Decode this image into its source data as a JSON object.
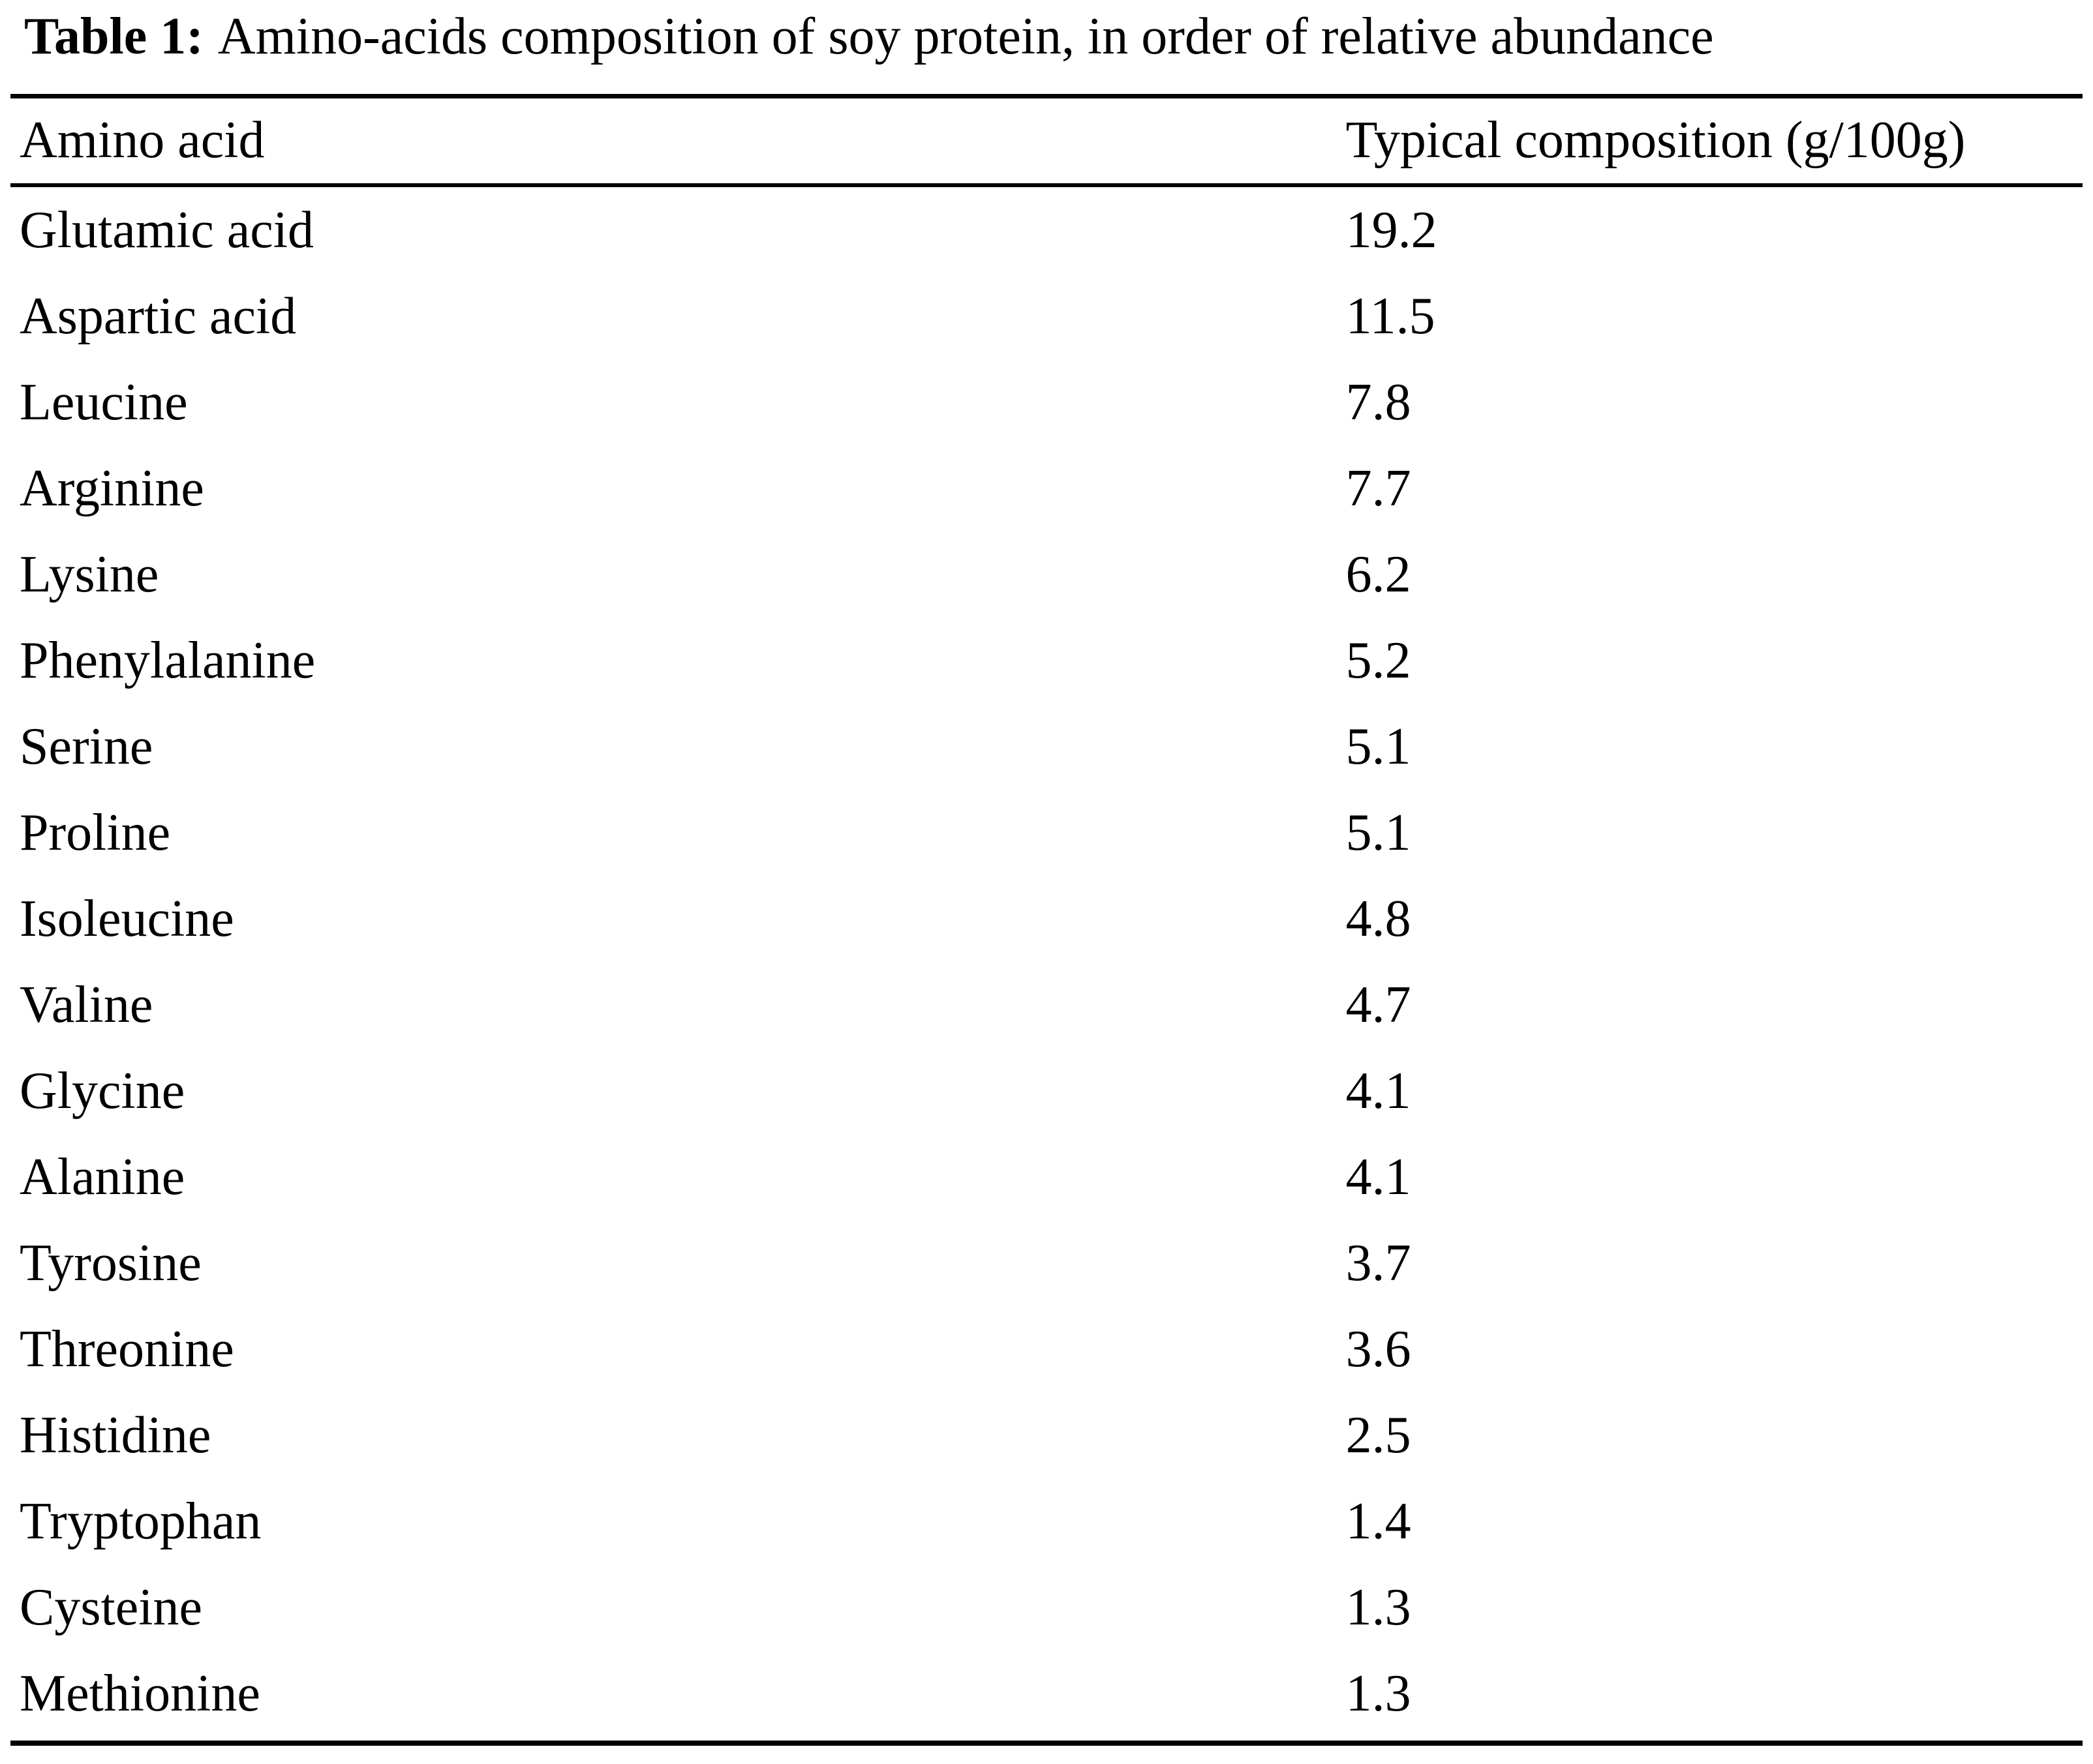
{
  "table": {
    "caption": {
      "label": "Table 1:",
      "text": "Amino-acids composition of soy protein, in order of relative abundance"
    },
    "columns": [
      "Amino acid",
      "Typical composition (g/100g)"
    ],
    "rows": [
      {
        "amino_acid": "Glutamic acid",
        "composition": "19.2"
      },
      {
        "amino_acid": "Aspartic acid",
        "composition": "11.5"
      },
      {
        "amino_acid": "Leucine",
        "composition": "7.8"
      },
      {
        "amino_acid": "Arginine",
        "composition": "7.7"
      },
      {
        "amino_acid": "Lysine",
        "composition": "6.2"
      },
      {
        "amino_acid": "Phenylalanine",
        "composition": "5.2"
      },
      {
        "amino_acid": "Serine",
        "composition": "5.1"
      },
      {
        "amino_acid": "Proline",
        "composition": "5.1"
      },
      {
        "amino_acid": "Isoleucine",
        "composition": "4.8"
      },
      {
        "amino_acid": "Valine",
        "composition": "4.7"
      },
      {
        "amino_acid": "Glycine",
        "composition": "4.1"
      },
      {
        "amino_acid": "Alanine",
        "composition": "4.1"
      },
      {
        "amino_acid": "Tyrosine",
        "composition": "3.7"
      },
      {
        "amino_acid": "Threonine",
        "composition": "3.6"
      },
      {
        "amino_acid": "Histidine",
        "composition": "2.5"
      },
      {
        "amino_acid": "Tryptophan",
        "composition": "1.4"
      },
      {
        "amino_acid": "Cysteine",
        "composition": "1.3"
      },
      {
        "amino_acid": "Methionine",
        "composition": "1.3"
      }
    ]
  }
}
